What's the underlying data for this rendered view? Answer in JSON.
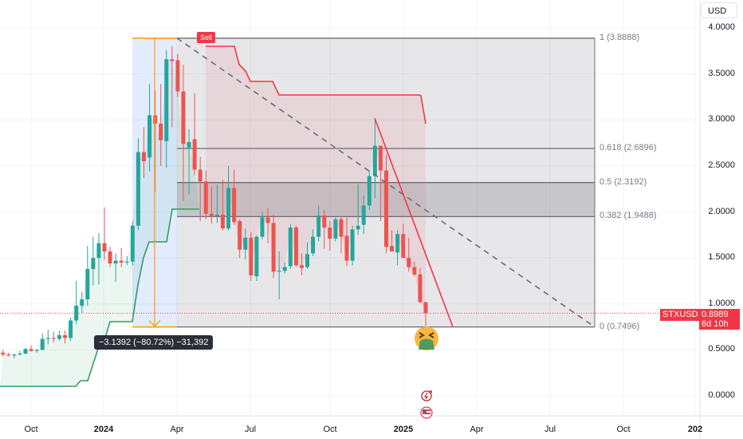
{
  "header": {
    "currency_button": "USD"
  },
  "symbol": {
    "name": "STXUSD",
    "last_price": "0.8989",
    "countdown": "6d 10h",
    "color": "#f23645"
  },
  "measure_tooltip": "−3.1392 (−80.72%) −31,392",
  "sell_label": "Sell",
  "fib_levels": [
    {
      "label": "1 (3.8888)",
      "price": 3.8888
    },
    {
      "label": "0.618 (2.6896)",
      "price": 2.6896
    },
    {
      "label": "0.5 (2.3192)",
      "price": 2.3192
    },
    {
      "label": "0.382 (1.9488)",
      "price": 1.9488
    },
    {
      "label": "0 (0.7496)",
      "price": 0.7496
    }
  ],
  "icons": [
    "nauseated-face-emoji-icon",
    "lightning-event-icon",
    "us-flag-economic-event-icon"
  ],
  "colors": {
    "up": "#26a69a",
    "down": "#ef5350",
    "supertrend_up": "#2e9e63",
    "supertrend_down": "#f23645",
    "measure": "#ff9800"
  },
  "chart_data": {
    "type": "candlestick",
    "interval": "weekly",
    "y_ticks": [
      "4.0000",
      "3.5000",
      "3.0000",
      "2.5000",
      "2.0000",
      "1.5000",
      "1.0000",
      "0.5000",
      "0.0000"
    ],
    "x_ticks": [
      {
        "label": "Oct",
        "bold": false
      },
      {
        "label": "2024",
        "bold": true
      },
      {
        "label": "Apr",
        "bold": false
      },
      {
        "label": "Jul",
        "bold": false
      },
      {
        "label": "Oct",
        "bold": false
      },
      {
        "label": "2025",
        "bold": true
      },
      {
        "label": "Apr",
        "bold": false
      },
      {
        "label": "Jul",
        "bold": false
      },
      {
        "label": "Oct",
        "bold": false
      },
      {
        "label": "202",
        "bold": true
      }
    ],
    "ylim": [
      -0.2,
      4.2
    ],
    "candles": [
      [
        "2023-08-28",
        0.47,
        0.5,
        0.43,
        0.45
      ],
      [
        "2023-09-04",
        0.45,
        0.47,
        0.43,
        0.44
      ],
      [
        "2023-09-11",
        0.44,
        0.46,
        0.41,
        0.45
      ],
      [
        "2023-09-18",
        0.45,
        0.49,
        0.44,
        0.46
      ],
      [
        "2023-09-25",
        0.46,
        0.52,
        0.45,
        0.51
      ],
      [
        "2023-10-02",
        0.51,
        0.55,
        0.48,
        0.49
      ],
      [
        "2023-10-09",
        0.49,
        0.51,
        0.47,
        0.5
      ],
      [
        "2023-10-16",
        0.5,
        0.68,
        0.5,
        0.62
      ],
      [
        "2023-10-23",
        0.62,
        0.72,
        0.56,
        0.63
      ],
      [
        "2023-10-30",
        0.63,
        0.7,
        0.58,
        0.62
      ],
      [
        "2023-11-06",
        0.62,
        0.71,
        0.6,
        0.66
      ],
      [
        "2023-11-13",
        0.66,
        0.71,
        0.57,
        0.63
      ],
      [
        "2023-11-20",
        0.63,
        0.85,
        0.6,
        0.82
      ],
      [
        "2023-11-27",
        0.82,
        1.25,
        0.78,
        0.98
      ],
      [
        "2023-12-04",
        0.98,
        1.13,
        0.9,
        1.05
      ],
      [
        "2023-12-11",
        1.05,
        1.63,
        0.98,
        1.38
      ],
      [
        "2023-12-18",
        1.38,
        1.73,
        1.2,
        1.5
      ],
      [
        "2023-12-25",
        1.5,
        1.77,
        1.21,
        1.66
      ],
      [
        "2024-01-01",
        1.66,
        2.05,
        1.48,
        1.57
      ],
      [
        "2024-01-08",
        1.57,
        1.62,
        1.4,
        1.44
      ],
      [
        "2024-01-15",
        1.44,
        1.55,
        1.24,
        1.47
      ],
      [
        "2024-01-22",
        1.47,
        1.61,
        1.4,
        1.45
      ],
      [
        "2024-01-29",
        1.45,
        1.52,
        1.42,
        1.46
      ],
      [
        "2024-02-05",
        1.46,
        1.9,
        1.42,
        1.85
      ],
      [
        "2024-02-12",
        1.85,
        2.8,
        1.8,
        2.65
      ],
      [
        "2024-02-19",
        2.65,
        2.92,
        2.37,
        2.55
      ],
      [
        "2024-02-26",
        2.59,
        3.39,
        2.44,
        3.05
      ],
      [
        "2024-03-04",
        3.05,
        3.32,
        2.22,
        2.96
      ],
      [
        "2024-03-11",
        2.96,
        3.39,
        2.5,
        2.78
      ],
      [
        "2024-03-18",
        2.77,
        3.76,
        2.48,
        3.66
      ],
      [
        "2024-03-25",
        3.66,
        3.8,
        2.92,
        3.64
      ],
      [
        "2024-04-01",
        3.65,
        3.72,
        3.25,
        3.31
      ],
      [
        "2024-04-08",
        3.31,
        3.6,
        2.12,
        2.74
      ],
      [
        "2024-04-15",
        2.7,
        2.9,
        2.19,
        2.76
      ],
      [
        "2024-04-22",
        2.79,
        3.29,
        2.4,
        2.46
      ],
      [
        "2024-04-29",
        2.46,
        2.6,
        1.9,
        2.33
      ],
      [
        "2024-05-06",
        2.33,
        2.45,
        1.92,
        1.98
      ],
      [
        "2024-05-13",
        1.98,
        2.27,
        1.87,
        1.95
      ],
      [
        "2024-05-20",
        1.95,
        2.3,
        1.88,
        1.97
      ],
      [
        "2024-05-27",
        1.97,
        2.35,
        1.8,
        1.82
      ],
      [
        "2024-06-03",
        1.82,
        2.5,
        1.8,
        2.26
      ],
      [
        "2024-06-10",
        2.26,
        2.46,
        1.86,
        1.89
      ],
      [
        "2024-06-17",
        1.9,
        1.92,
        1.5,
        1.59
      ],
      [
        "2024-06-24",
        1.59,
        1.82,
        1.48,
        1.72
      ],
      [
        "2024-07-01",
        1.72,
        1.78,
        1.25,
        1.31
      ],
      [
        "2024-07-08",
        1.3,
        1.75,
        1.25,
        1.73
      ],
      [
        "2024-07-15",
        1.73,
        2.0,
        1.7,
        1.94
      ],
      [
        "2024-07-22",
        1.94,
        2.04,
        1.66,
        1.88
      ],
      [
        "2024-07-29",
        1.88,
        1.97,
        1.28,
        1.35
      ],
      [
        "2024-08-05",
        1.35,
        1.57,
        1.05,
        1.36
      ],
      [
        "2024-08-12",
        1.36,
        1.45,
        1.33,
        1.4
      ],
      [
        "2024-08-19",
        1.41,
        1.87,
        1.38,
        1.83
      ],
      [
        "2024-08-26",
        1.83,
        1.85,
        1.4,
        1.42
      ],
      [
        "2024-09-02",
        1.42,
        1.55,
        1.31,
        1.39
      ],
      [
        "2024-09-09",
        1.4,
        1.67,
        1.38,
        1.54
      ],
      [
        "2024-09-16",
        1.55,
        1.81,
        1.52,
        1.73
      ],
      [
        "2024-09-23",
        1.73,
        2.07,
        1.68,
        1.96
      ],
      [
        "2024-09-30",
        1.96,
        2.02,
        1.6,
        1.83
      ],
      [
        "2024-10-07",
        1.83,
        1.9,
        1.58,
        1.71
      ],
      [
        "2024-10-14",
        1.71,
        1.94,
        1.68,
        1.92
      ],
      [
        "2024-10-21",
        1.92,
        1.95,
        1.55,
        1.73
      ],
      [
        "2024-10-28",
        1.74,
        1.94,
        1.41,
        1.47
      ],
      [
        "2024-11-04",
        1.47,
        1.85,
        1.42,
        1.81
      ],
      [
        "2024-11-11",
        1.81,
        2.3,
        1.75,
        1.85
      ],
      [
        "2024-11-18",
        1.86,
        2.18,
        1.76,
        2.07
      ],
      [
        "2024-11-25",
        2.07,
        2.45,
        2.02,
        2.39
      ],
      [
        "2024-12-02",
        2.39,
        3.02,
        2.15,
        2.72
      ],
      [
        "2024-12-09",
        2.72,
        2.72,
        1.9,
        2.45
      ],
      [
        "2024-12-16",
        2.45,
        2.62,
        1.55,
        1.62
      ],
      [
        "2024-12-23",
        1.63,
        1.8,
        1.57,
        1.57
      ],
      [
        "2024-12-30",
        1.56,
        1.8,
        1.42,
        1.76
      ],
      [
        "2025-01-06",
        1.76,
        1.87,
        1.5,
        1.5
      ],
      [
        "2025-01-13",
        1.5,
        1.72,
        1.35,
        1.4
      ],
      [
        "2025-01-20",
        1.4,
        1.46,
        1.3,
        1.32
      ],
      [
        "2025-01-27",
        1.32,
        1.39,
        1.01,
        1.02
      ],
      [
        "2025-02-03",
        1.02,
        1.02,
        0.75,
        0.8989
      ]
    ]
  }
}
